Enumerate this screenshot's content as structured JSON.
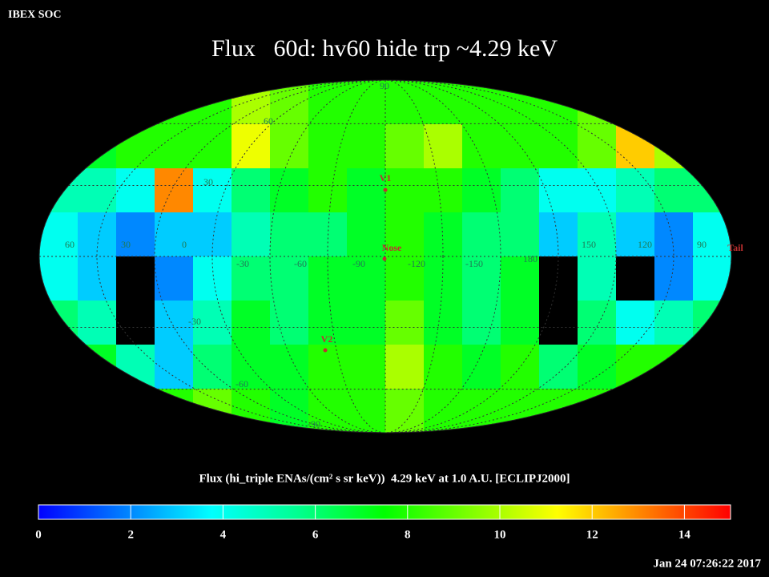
{
  "header": {
    "source": "IBEX SOC",
    "title": "Flux   60d: hv60 hide trp ~4.29 keV",
    "timestamp": "Jan 24 07:26:22 2017"
  },
  "map": {
    "type": "heatmap",
    "projection": "mollweide",
    "values": [
      [
        8,
        8,
        8,
        8,
        8,
        10,
        9,
        8,
        8,
        8,
        8,
        8,
        8,
        8,
        9,
        8,
        8,
        8
      ],
      [
        7,
        7,
        8,
        8,
        8,
        11,
        9,
        8,
        8,
        9,
        10,
        8,
        8,
        8,
        9,
        12,
        10,
        8
      ],
      [
        5,
        5,
        4,
        13,
        4,
        6,
        7,
        8,
        7,
        8,
        8,
        7,
        6,
        4,
        4,
        5,
        6,
        6
      ],
      [
        4,
        3,
        2,
        3,
        3,
        5,
        6,
        6,
        7,
        8,
        7,
        6,
        6,
        3,
        5,
        3,
        2,
        4
      ],
      [
        4,
        3,
        null,
        2,
        4,
        6,
        6,
        7,
        7,
        8,
        7,
        6,
        7,
        null,
        5,
        null,
        2,
        4
      ],
      [
        6,
        5,
        null,
        3,
        5,
        7,
        6,
        7,
        7,
        9,
        7,
        6,
        7,
        null,
        6,
        4,
        5,
        6
      ],
      [
        8,
        7,
        5,
        3,
        6,
        7,
        7,
        8,
        8,
        10,
        8,
        7,
        8,
        6,
        7,
        8,
        8,
        8
      ],
      [
        8,
        8,
        8,
        8,
        9,
        8,
        7,
        8,
        8,
        9,
        8,
        8,
        8,
        8,
        8,
        8,
        8,
        8
      ]
    ],
    "colormap": [
      "#0000ff",
      "#0080ff",
      "#00ffff",
      "#00ff90",
      "#00ff00",
      "#80ff00",
      "#ffff00",
      "#ff8000",
      "#ff0000"
    ],
    "no_data_color": "#000000",
    "longitude_labels": [
      60,
      30,
      0,
      -30,
      -60,
      -90,
      -120,
      -150,
      180,
      150,
      120,
      90
    ],
    "latitude_labels": [
      90,
      60,
      30,
      -30,
      -60,
      -90
    ],
    "markers": [
      "V1",
      "Nose",
      "V2",
      "Tail"
    ]
  },
  "colorbar": {
    "label": "Flux (hi_triple ENAs/(cm² s sr keV))  4.29 keV at 1.0 A.U. [ECLIPJ2000]",
    "clim": [
      0,
      15
    ],
    "ticks": [
      0,
      2,
      4,
      6,
      8,
      10,
      12,
      14
    ]
  }
}
